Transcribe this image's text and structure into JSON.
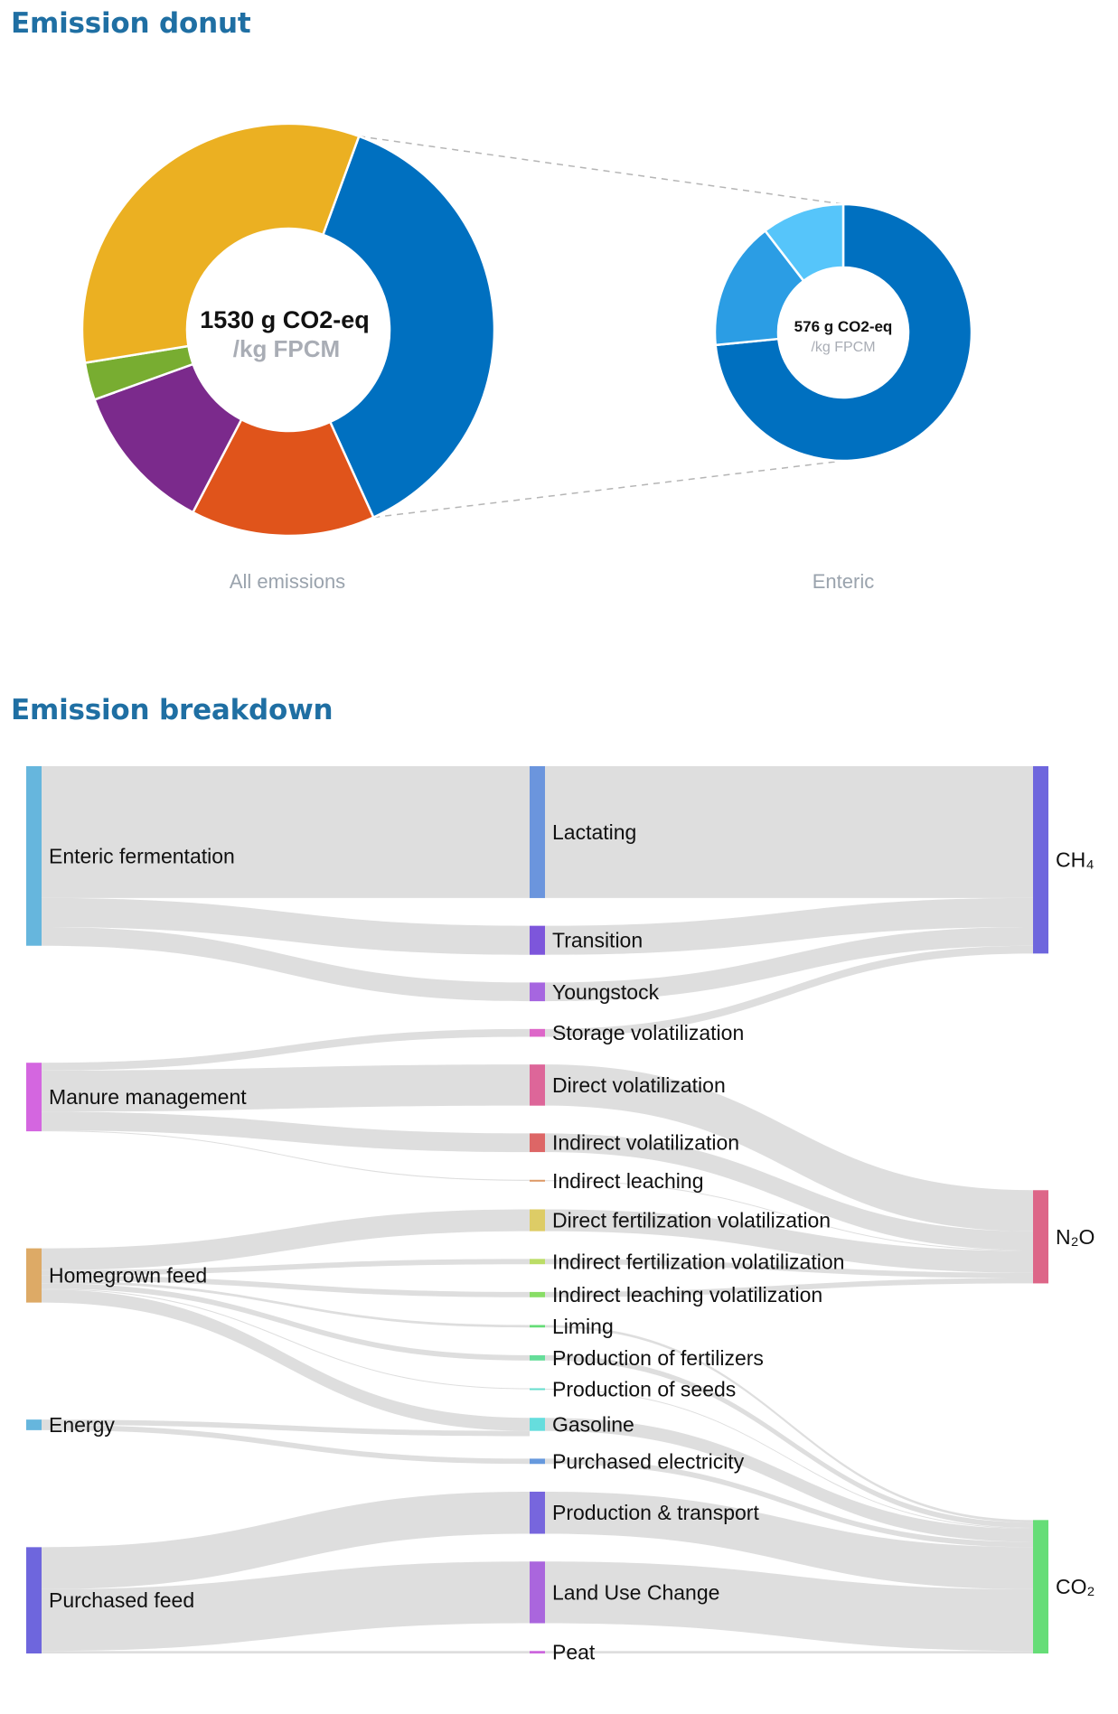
{
  "donut_section": {
    "title": "Emission donut"
  },
  "sankey_section": {
    "title": "Emission breakdown"
  },
  "chart_data": [
    {
      "type": "pie",
      "subtype": "donut",
      "caption": "All emissions",
      "center_value": "1530 g CO2-eq",
      "center_unit": "/kg FPCM",
      "slices": [
        {
          "key": "enteric",
          "value": 576,
          "color": "#0070c0"
        },
        {
          "key": "orange",
          "value": 221,
          "color": "#e0541b"
        },
        {
          "key": "purple",
          "value": 181,
          "color": "#7b2a8c"
        },
        {
          "key": "green",
          "value": 45,
          "color": "#78ad31"
        },
        {
          "key": "yellow",
          "value": 507,
          "color": "#ebb022"
        }
      ],
      "exploded_slice": "enteric"
    },
    {
      "type": "pie",
      "subtype": "donut",
      "caption": "Enteric",
      "center_value": "576 g CO2-eq",
      "center_unit": "/kg FPCM",
      "slices": [
        {
          "key": "lactating",
          "value": 423,
          "color": "#0070c0"
        },
        {
          "key": "transition",
          "value": 93,
          "color": "#2b9de4"
        },
        {
          "key": "youngstock",
          "value": 60,
          "color": "#56c5fa"
        }
      ]
    },
    {
      "type": "sankey",
      "sources": [
        {
          "id": "enteric",
          "label": "Enteric fermentation",
          "color": "#66b6dd"
        },
        {
          "id": "manure",
          "label": "Manure management",
          "color": "#d466e0"
        },
        {
          "id": "homegrown",
          "label": "Homegrown feed",
          "color": "#ddaa66"
        },
        {
          "id": "energy",
          "label": "Energy",
          "color": "#66b6dd"
        },
        {
          "id": "purchased",
          "label": "Purchased feed",
          "color": "#6e66dd"
        }
      ],
      "categories": [
        {
          "id": "lactating",
          "label": "Lactating",
          "value": 423,
          "source": "enteric",
          "gas": "ch4",
          "color": "#6b95dd"
        },
        {
          "id": "transition",
          "label": "Transition",
          "value": 93,
          "source": "enteric",
          "gas": "ch4",
          "color": "#7d56db"
        },
        {
          "id": "youngstock",
          "label": "Youngstock",
          "value": 60,
          "source": "enteric",
          "gas": "ch4",
          "color": "#a666e0"
        },
        {
          "id": "storage",
          "label": "Storage volatilization",
          "value": 25,
          "source": "manure",
          "gas": "ch4",
          "color": "#dd66c8"
        },
        {
          "id": "direct_vol",
          "label": "Direct volatilization",
          "value": 132,
          "source": "manure",
          "gas": "n2o",
          "color": "#dd6699"
        },
        {
          "id": "indirect_vol",
          "label": "Indirect volatilization",
          "value": 60,
          "source": "manure",
          "gas": "n2o",
          "color": "#dd6666"
        },
        {
          "id": "indirect_leach",
          "label": "Indirect leaching",
          "value": 3,
          "source": "manure",
          "gas": "n2o",
          "color": "#dd9966"
        },
        {
          "id": "direct_fert",
          "label": "Direct fertilization volatilization",
          "value": 70,
          "source": "homegrown",
          "gas": "n2o",
          "color": "#ddcc66"
        },
        {
          "id": "indirect_fert",
          "label": "Indirect fertilization volatilization",
          "value": 17,
          "source": "homegrown",
          "gas": "n2o",
          "color": "#bbdd66"
        },
        {
          "id": "indirect_leach_vol",
          "label": "Indirect leaching volatilization",
          "value": 17,
          "source": "homegrown",
          "gas": "n2o",
          "color": "#88dd66"
        },
        {
          "id": "liming",
          "label": "Liming",
          "value": 8,
          "source": "homegrown",
          "gas": "co2",
          "color": "#66dd77"
        },
        {
          "id": "prod_fert",
          "label": "Production of fertilizers",
          "value": 17,
          "source": "homegrown",
          "gas": "co2",
          "color": "#66dd99"
        },
        {
          "id": "prod_seeds",
          "label": "Production of seeds",
          "value": 3,
          "source": "homegrown",
          "gas": "co2",
          "color": "#66ddcc"
        },
        {
          "id": "gasoline",
          "label": "Gasoline",
          "value": 42,
          "source": "homegrown",
          "gas": "co2",
          "color": "#66dddd"
        },
        {
          "id": "purch_elec",
          "label": "Purchased electricity",
          "value": 17,
          "source": "energy",
          "gas": "co2",
          "color": "#6699dd"
        },
        {
          "id": "prod_transport",
          "label": "Production & transport",
          "value": 135,
          "source": "purchased",
          "gas": "co2",
          "color": "#7766dd"
        },
        {
          "id": "luc",
          "label": "Land Use Change",
          "value": 198,
          "source": "purchased",
          "gas": "co2",
          "color": "#aa66dd"
        },
        {
          "id": "peat",
          "label": "Peat",
          "value": 8,
          "source": "purchased",
          "gas": "co2",
          "color": "#cc66dd"
        }
      ],
      "extra_links": [
        {
          "source": "energy",
          "target": "gasoline",
          "value": 17
        }
      ],
      "gases": [
        {
          "id": "ch4",
          "label": "CH₄",
          "color": "#6e66dd"
        },
        {
          "id": "n2o",
          "label": "N₂O",
          "color": "#dd6688"
        },
        {
          "id": "co2",
          "label": "CO₂",
          "color": "#66dd77"
        }
      ],
      "link_color": "#dcdcdc"
    }
  ]
}
